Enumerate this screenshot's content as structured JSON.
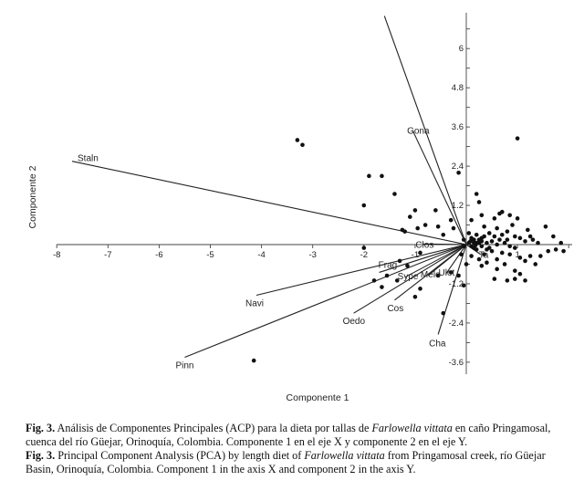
{
  "chart_data": {
    "type": "scatter",
    "title": "",
    "xlabel": "Componente 1",
    "ylabel": "Componente 2",
    "xlim": [
      -8,
      2
    ],
    "ylim": [
      -4.2,
      7
    ],
    "x_ticks": [
      -8,
      -7,
      -6,
      -5,
      -4,
      -3,
      -2,
      -1,
      1
    ],
    "y_ticks": [
      6,
      4.8,
      3.6,
      2.4,
      1.2,
      -1.2,
      -2.4,
      -3.6
    ],
    "vectors": [
      {
        "label": "Staln",
        "x": -7.7,
        "y": 2.55
      },
      {
        "label": "Gona",
        "x": -1.05,
        "y": 3.5
      },
      {
        "label": "Clos",
        "x": -0.85,
        "y": 0.02
      },
      {
        "label": "Frag",
        "x": -1.7,
        "y": -0.85
      },
      {
        "label": "Navi",
        "x": -4.1,
        "y": -1.55
      },
      {
        "label": "Pinn",
        "x": -5.5,
        "y": -3.45
      },
      {
        "label": "Oedo",
        "x": -2.2,
        "y": -2.1
      },
      {
        "label": "Cos",
        "x": -1.4,
        "y": -1.7
      },
      {
        "label": "Sype",
        "x": -1.2,
        "y": -1.0
      },
      {
        "label": "Melo",
        "x": -0.75,
        "y": -0.95
      },
      {
        "label": "Ulot",
        "x": -0.4,
        "y": -0.9
      },
      {
        "label": "Cha",
        "x": -0.55,
        "y": -2.75
      },
      {
        "label": "Ta",
        "x": 0.28,
        "y": -0.3
      },
      {
        "label": "",
        "x": -1.6,
        "y": 7.0
      }
    ],
    "points": [
      [
        -3.3,
        3.2
      ],
      [
        -3.2,
        3.05
      ],
      [
        1.0,
        3.25
      ],
      [
        -1.9,
        2.1
      ],
      [
        -1.65,
        2.1
      ],
      [
        -0.15,
        2.2
      ],
      [
        -1.4,
        1.55
      ],
      [
        -2.0,
        1.2
      ],
      [
        -1.0,
        1.05
      ],
      [
        -0.6,
        1.05
      ],
      [
        -1.1,
        0.85
      ],
      [
        -0.8,
        0.6
      ],
      [
        -0.3,
        0.75
      ],
      [
        -1.25,
        0.45
      ],
      [
        -1.2,
        0.4
      ],
      [
        -0.95,
        0.5
      ],
      [
        -0.55,
        0.55
      ],
      [
        -0.45,
        0.3
      ],
      [
        -0.25,
        0.5
      ],
      [
        -2.0,
        -0.1
      ],
      [
        -0.9,
        -0.25
      ],
      [
        -1.3,
        -0.5
      ],
      [
        -1.15,
        -0.65
      ],
      [
        -1.55,
        -0.95
      ],
      [
        -1.35,
        -1.1
      ],
      [
        -1.65,
        -1.3
      ],
      [
        -1.8,
        -1.1
      ],
      [
        -0.9,
        -1.35
      ],
      [
        -1.0,
        -1.6
      ],
      [
        -0.3,
        -0.85
      ],
      [
        -0.55,
        -0.95
      ],
      [
        -0.15,
        -0.95
      ],
      [
        -0.05,
        -1.25
      ],
      [
        -0.45,
        -2.1
      ],
      [
        -4.15,
        -3.55
      ],
      [
        0.15,
        0.15
      ],
      [
        0.3,
        0.2
      ],
      [
        0.45,
        0.35
      ],
      [
        0.6,
        0.5
      ],
      [
        0.7,
        0.3
      ],
      [
        0.8,
        0.4
      ],
      [
        0.9,
        0.6
      ],
      [
        1.05,
        0.2
      ],
      [
        1.2,
        0.45
      ],
      [
        1.3,
        0.15
      ],
      [
        1.4,
        0.05
      ],
      [
        1.55,
        0.55
      ],
      [
        1.7,
        0.25
      ],
      [
        1.85,
        0.05
      ],
      [
        1.9,
        -0.2
      ],
      [
        1.75,
        -0.15
      ],
      [
        1.6,
        -0.2
      ],
      [
        0.2,
        -0.15
      ],
      [
        0.35,
        -0.3
      ],
      [
        0.5,
        -0.2
      ],
      [
        0.6,
        -0.45
      ],
      [
        0.75,
        -0.6
      ],
      [
        0.85,
        -0.3
      ],
      [
        0.95,
        -0.8
      ],
      [
        1.05,
        -0.9
      ],
      [
        1.15,
        -0.5
      ],
      [
        1.25,
        -0.35
      ],
      [
        1.35,
        -0.6
      ],
      [
        1.05,
        -0.4
      ],
      [
        0.8,
        -1.1
      ],
      [
        0.55,
        -1.05
      ],
      [
        0.6,
        -0.75
      ],
      [
        0.95,
        -1.05
      ],
      [
        1.15,
        -1.1
      ],
      [
        0.35,
        0.55
      ],
      [
        0.55,
        0.8
      ],
      [
        0.65,
        0.95
      ],
      [
        0.7,
        1.0
      ],
      [
        0.3,
        0.9
      ],
      [
        0.25,
        1.3
      ],
      [
        0.2,
        1.55
      ],
      [
        0.1,
        0.75
      ],
      [
        0.05,
        0.35
      ],
      [
        -0.05,
        0.15
      ],
      [
        0.1,
        -0.05
      ],
      [
        0.15,
        -0.1
      ],
      [
        0.25,
        0.05
      ],
      [
        0.4,
        0.05
      ],
      [
        0.5,
        0.1
      ],
      [
        0.45,
        -0.1
      ],
      [
        0.3,
        -0.05
      ],
      [
        0.2,
        0.3
      ],
      [
        0.65,
        0.15
      ],
      [
        0.8,
        0.15
      ],
      [
        0.95,
        0.25
      ],
      [
        1.15,
        0.1
      ],
      [
        1.25,
        0.25
      ],
      [
        0.95,
        -0.1
      ],
      [
        0.7,
        -0.25
      ],
      [
        1.0,
        0.8
      ],
      [
        0.85,
        0.9
      ],
      [
        0.4,
        -0.55
      ],
      [
        0.25,
        -0.45
      ],
      [
        0.1,
        -0.35
      ],
      [
        0.0,
        -0.6
      ],
      [
        -0.1,
        -0.3
      ],
      [
        0.3,
        -0.65
      ],
      [
        1.45,
        -0.35
      ],
      [
        0.15,
        0.05
      ],
      [
        0.05,
        0.05
      ],
      [
        0.25,
        0.15
      ],
      [
        0.35,
        0.25
      ],
      [
        0.55,
        0.25
      ],
      [
        0.1,
        0.2
      ],
      [
        -0.05,
        -0.05
      ],
      [
        0.4,
        -0.15
      ],
      [
        0.6,
        0.0
      ],
      [
        0.75,
        0.05
      ],
      [
        0.85,
        -0.05
      ],
      [
        0.2,
        0.05
      ],
      [
        0.3,
        0.1
      ],
      [
        0.12,
        0.12
      ],
      [
        0.18,
        -0.02
      ],
      [
        0.08,
        0.1
      ]
    ]
  },
  "caption": {
    "es": {
      "fig_label": "Fig. 3.",
      "text_before": " Análisis de Componentes Principales (ACP) para la dieta por tallas de ",
      "species": "Farlowella vittata",
      "text_after": " en caño Pringamosal, cuenca del río Güejar, Orinoquía, Colombia. Componente 1 en el eje X y componente 2 en el eje Y."
    },
    "en": {
      "fig_label": "Fig. 3.",
      "text_before": " Principal Component Analysis (PCA) by length diet of ",
      "species": "Farlowella vittata",
      "text_after": " from Pringamosal creek, río Güejar Basin, Orinoquía, Colombia. Component 1 in the axis X and component 2 in the axis Y."
    }
  }
}
